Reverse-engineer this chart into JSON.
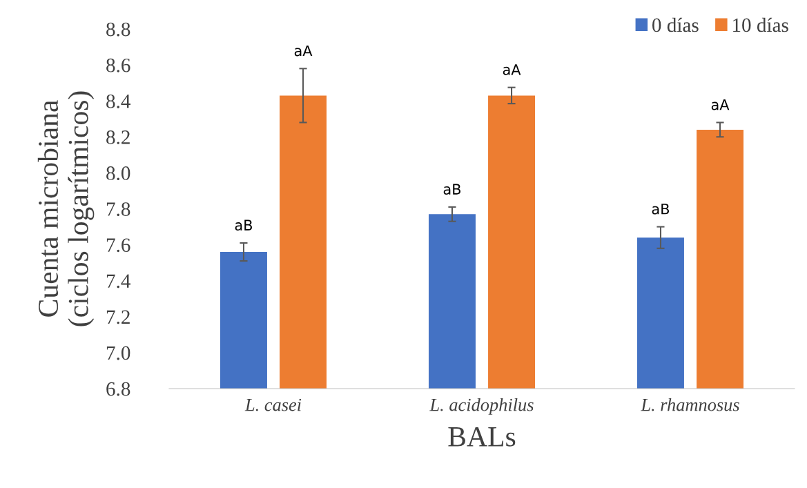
{
  "chart_data": {
    "type": "bar",
    "xlabel": "BALs",
    "ylabel": "Cuenta microbiana\n(ciclos logarítmicos)",
    "categories": [
      "L. casei",
      "L. acidophilus",
      "L. rhamnosus"
    ],
    "series": [
      {
        "name": "0 días",
        "color": "#4472c4",
        "values": [
          7.56,
          7.77,
          7.64
        ],
        "errors": [
          0.05,
          0.04,
          0.06
        ],
        "value_labels": [
          "aB",
          "aB",
          "aB"
        ]
      },
      {
        "name": "10 días",
        "color": "#ed7d31",
        "values": [
          8.43,
          8.43,
          8.24
        ],
        "errors": [
          0.15,
          0.045,
          0.04
        ],
        "value_labels": [
          "aA",
          "aA",
          "aA"
        ]
      }
    ],
    "ylim": [
      6.8,
      8.8
    ],
    "yticks": [
      {
        "value": 6.8,
        "label": "6.8"
      },
      {
        "value": 7.0,
        "label": "7.0"
      },
      {
        "value": 7.2,
        "label": "7.2"
      },
      {
        "value": 7.4,
        "label": "7.4"
      },
      {
        "value": 7.6,
        "label": "7.6"
      },
      {
        "value": 7.8,
        "label": "7.8"
      },
      {
        "value": 8.0,
        "label": "8.0"
      },
      {
        "value": 8.2,
        "label": "8.2"
      },
      {
        "value": 8.4,
        "label": "8.4"
      },
      {
        "value": 8.6,
        "label": "8.6"
      },
      {
        "value": 8.8,
        "label": "8.8"
      }
    ],
    "grid": false,
    "legend": "top right"
  }
}
